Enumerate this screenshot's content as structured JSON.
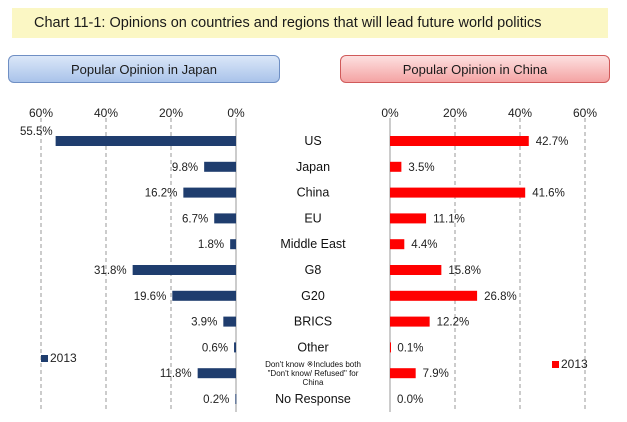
{
  "title": "Chart 11-1: Opinions on countries and regions that will lead future world politics",
  "panels": {
    "japan": "Popular Opinion in Japan",
    "china": "Popular Opinion in China"
  },
  "chart_data": {
    "type": "bar",
    "orientation": "horizontal-back-to-back",
    "categories": [
      "US",
      "Japan",
      "China",
      "EU",
      "Middle East",
      "G8",
      "G20",
      "BRICS",
      "Other",
      "Don't know ※Includes both \"Don't know/ Refused\" for China",
      "No Response"
    ],
    "category_lines": [
      [
        "US"
      ],
      [
        "Japan"
      ],
      [
        "China"
      ],
      [
        "EU"
      ],
      [
        "Middle East"
      ],
      [
        "G8"
      ],
      [
        "G20"
      ],
      [
        "BRICS"
      ],
      [
        "Other"
      ],
      [
        "Don't know ※Includes both",
        "\"Don't know/ Refused\" for",
        "China"
      ],
      [
        "No Response"
      ]
    ],
    "series": [
      {
        "name": "Popular Opinion in Japan",
        "legend": "2013",
        "color": "#1f3d6e",
        "values": [
          55.5,
          9.8,
          16.2,
          6.7,
          1.8,
          31.8,
          19.6,
          3.9,
          0.6,
          11.8,
          0.2
        ],
        "labels": [
          "55.5%",
          "9.8%",
          "16.2%",
          "6.7%",
          "1.8%",
          "31.8%",
          "19.6%",
          "3.9%",
          "0.6%",
          "11.8%",
          "0.2%"
        ]
      },
      {
        "name": "Popular Opinion in China",
        "legend": "2013",
        "color": "#ff0000",
        "values": [
          42.7,
          3.5,
          41.6,
          11.1,
          4.4,
          15.8,
          26.8,
          12.2,
          0.1,
          7.9,
          0.0
        ],
        "labels": [
          "42.7%",
          "3.5%",
          "41.6%",
          "11.1%",
          "4.4%",
          "15.8%",
          "26.8%",
          "12.2%",
          "0.1%",
          "7.9%",
          "0.0%"
        ]
      }
    ],
    "xlim": [
      0,
      60
    ],
    "ticks": [
      0,
      20,
      40,
      60
    ],
    "tick_labels_japan": [
      "0%",
      "20%",
      "40%",
      "60%"
    ],
    "tick_labels_china": [
      "0%",
      "20%",
      "40%",
      "60%"
    ],
    "grid": true,
    "legend": "bottom-outer-sides"
  }
}
